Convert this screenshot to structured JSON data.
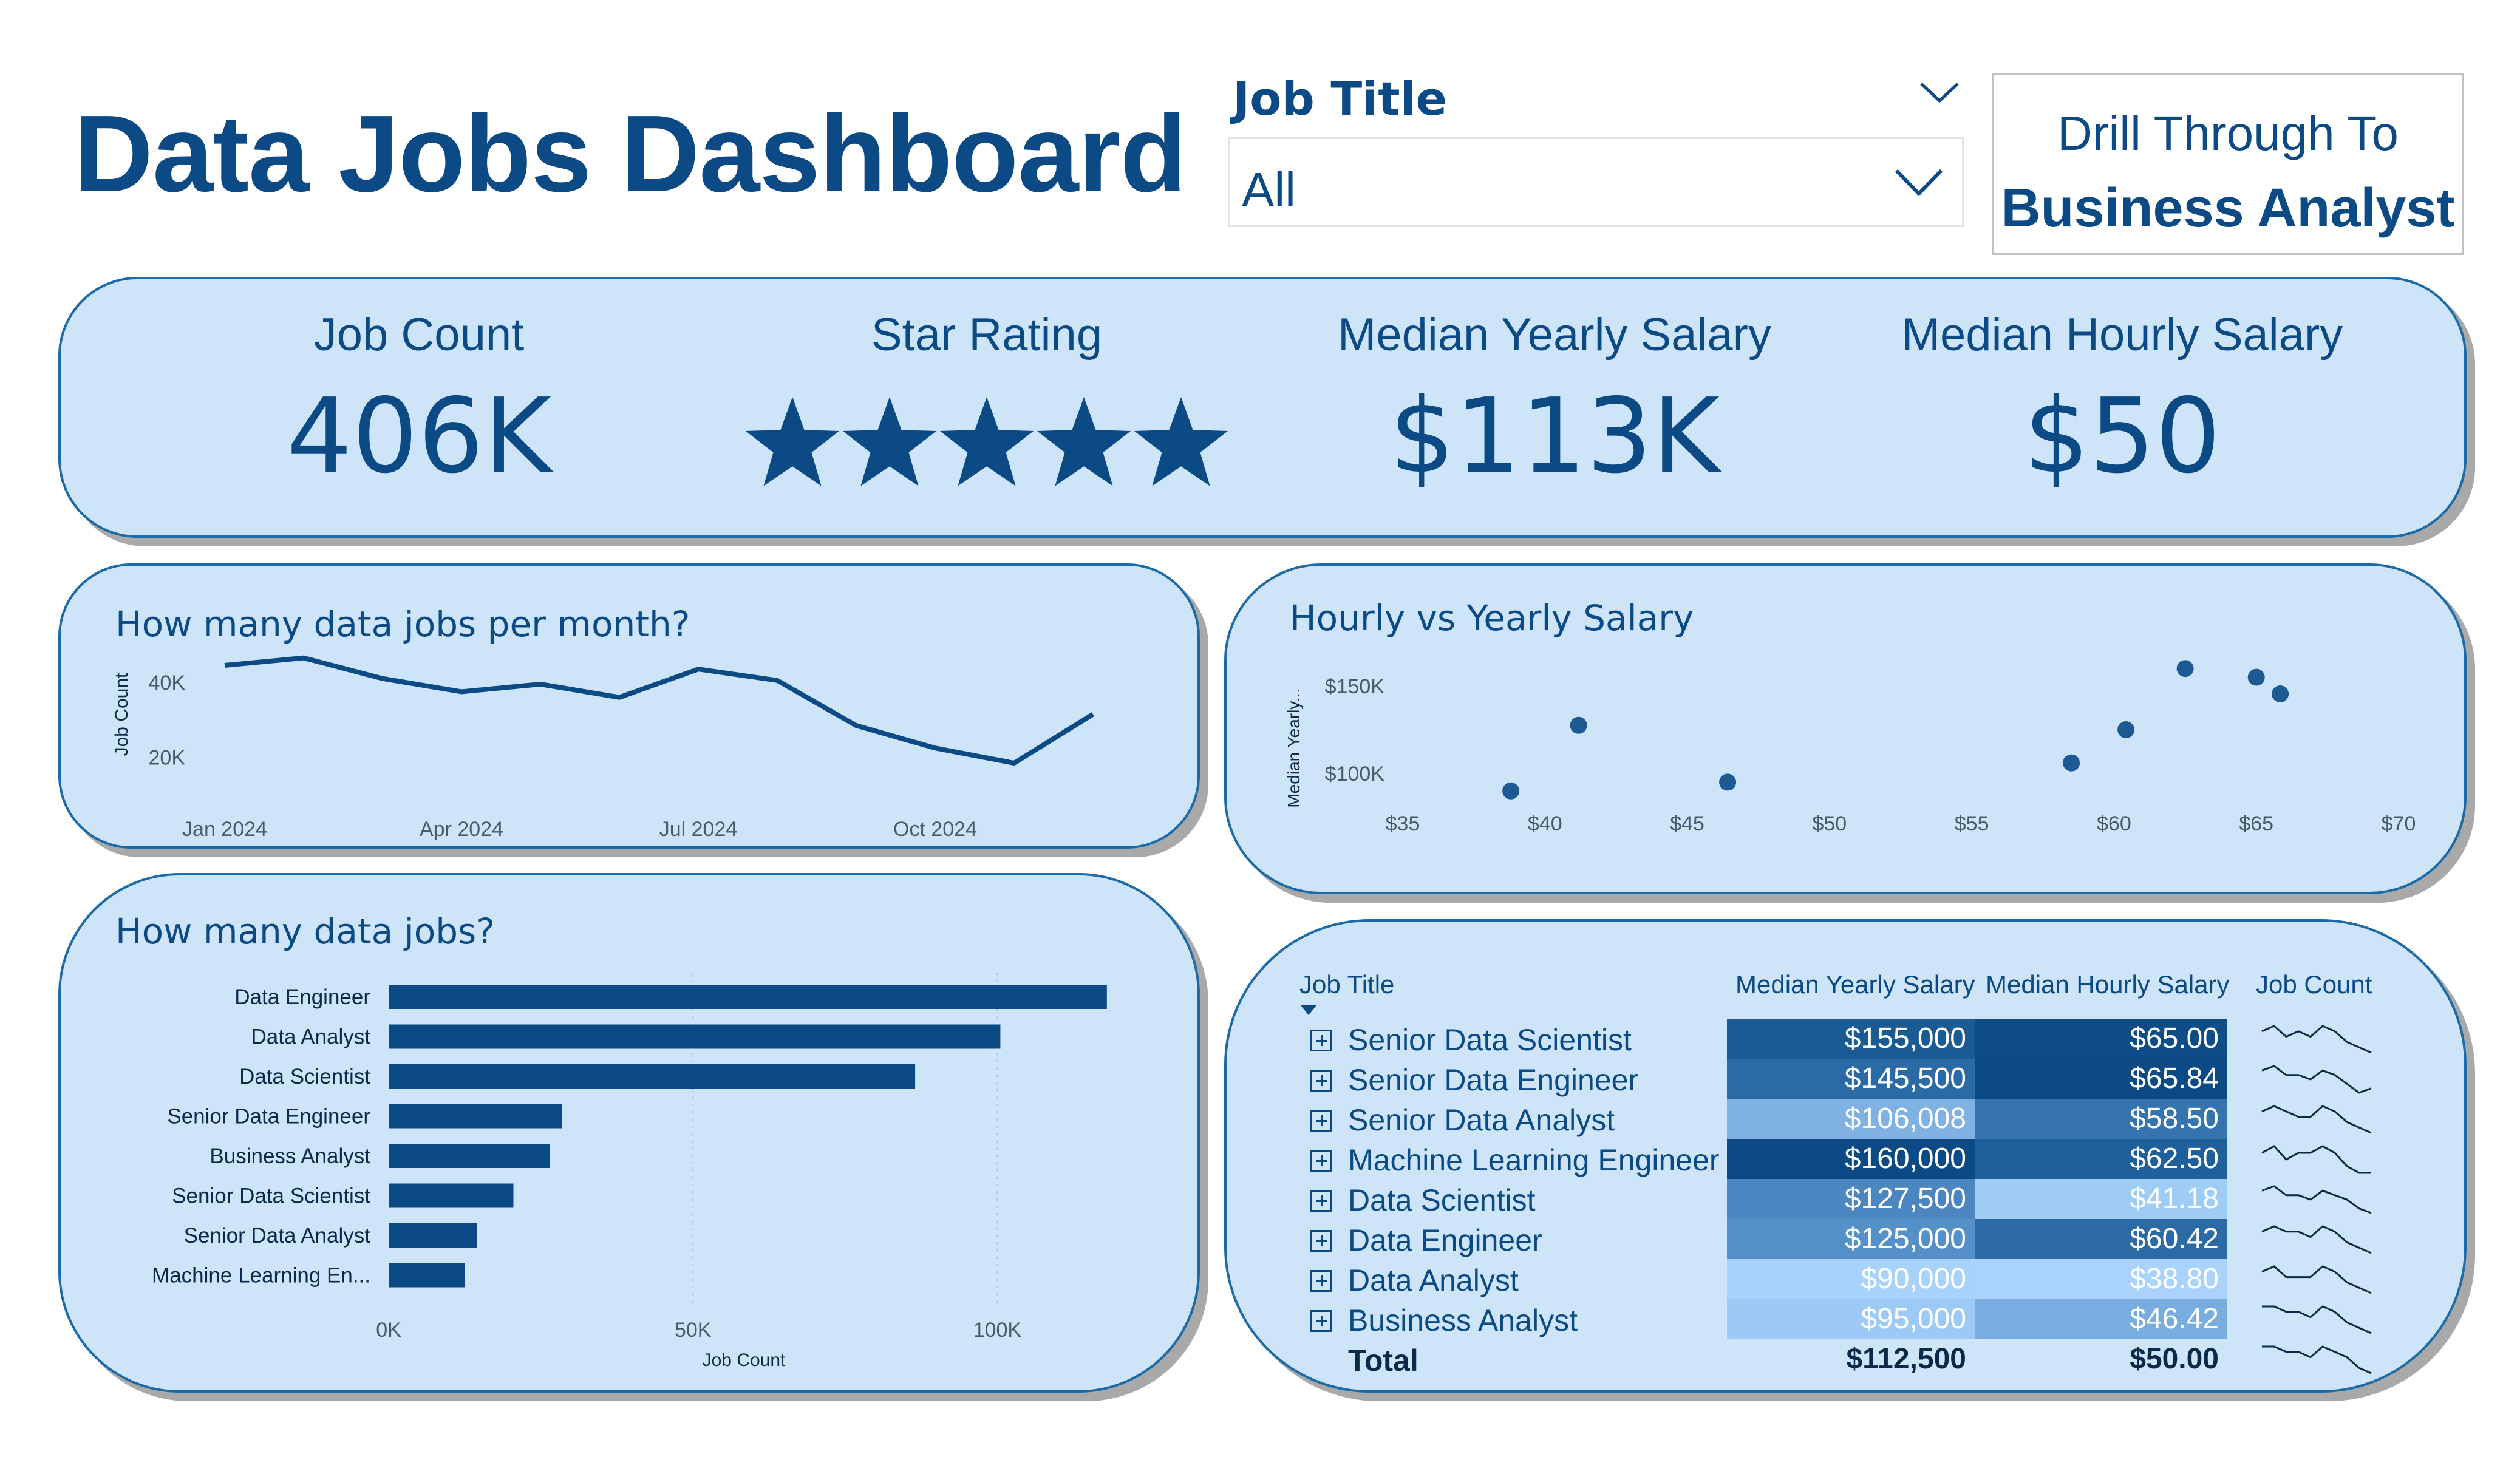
{
  "title": "Data Jobs Dashboard",
  "slicer": {
    "label": "Job Title",
    "value": "All"
  },
  "drill": {
    "line1": "Drill Through To",
    "line2": "Business Analyst"
  },
  "kpis": {
    "job_count": {
      "label": "Job Count",
      "value": "406K"
    },
    "star_rating": {
      "label": "Star Rating",
      "stars": 5,
      "max": 5
    },
    "median_yearly": {
      "label": "Median Yearly Salary",
      "value": "$113K"
    },
    "median_hourly": {
      "label": "Median Hourly Salary",
      "value": "$50"
    }
  },
  "colors": {
    "accent": "#0b4a85",
    "card_bg": "#cde4f9",
    "card_border": "#1d6aa8"
  },
  "line_panel": {
    "title": "How many data jobs per month?"
  },
  "scatter_panel": {
    "title": "Hourly vs Yearly Salary"
  },
  "bar_panel": {
    "title": "How many data jobs?"
  },
  "table": {
    "headers": [
      "Job Title",
      "Median Yearly Salary",
      "Median Hourly Salary",
      "Job Count"
    ],
    "rows": [
      {
        "title": "Senior Data Scientist",
        "yearly": "$155,000",
        "hourly": "$65.00",
        "yearly_bg": "#1a5a95",
        "hourly_bg": "#0e4c88",
        "yearly_fg": "#ffffff",
        "hourly_fg": "#ffffff"
      },
      {
        "title": "Senior Data Engineer",
        "yearly": "$145,500",
        "hourly": "$65.84",
        "yearly_bg": "#2a6aa6",
        "hourly_bg": "#0b4a85",
        "yearly_fg": "#ffffff",
        "hourly_fg": "#ffffff"
      },
      {
        "title": "Senior Data Analyst",
        "yearly": "$106,008",
        "hourly": "$58.50",
        "yearly_bg": "#7fb2e3",
        "hourly_bg": "#3674b0",
        "yearly_fg": "#ffffff",
        "hourly_fg": "#ffffff"
      },
      {
        "title": "Machine Learning Engineer",
        "yearly": "$160,000",
        "hourly": "$62.50",
        "yearly_bg": "#0b4a85",
        "hourly_bg": "#1f5f9b",
        "yearly_fg": "#ffffff",
        "hourly_fg": "#ffffff"
      },
      {
        "title": "Data Scientist",
        "yearly": "$127,500",
        "hourly": "$41.18",
        "yearly_bg": "#4c86c0",
        "hourly_bg": "#9fccf5",
        "yearly_fg": "#ffffff",
        "hourly_fg": "#ffffff"
      },
      {
        "title": "Data Engineer",
        "yearly": "$125,000",
        "hourly": "$60.42",
        "yearly_bg": "#5590c9",
        "hourly_bg": "#2c6aa5",
        "yearly_fg": "#ffffff",
        "hourly_fg": "#ffffff"
      },
      {
        "title": "Data Analyst",
        "yearly": "$90,000",
        "hourly": "$38.80",
        "yearly_bg": "#a7d2fb",
        "hourly_bg": "#a9d3fb",
        "yearly_fg": "#ffffff",
        "hourly_fg": "#ffffff"
      },
      {
        "title": "Business Analyst",
        "yearly": "$95,000",
        "hourly": "$46.42",
        "yearly_bg": "#9cc9f6",
        "hourly_bg": "#79acdf",
        "yearly_fg": "#ffffff",
        "hourly_fg": "#ffffff"
      }
    ],
    "total": {
      "label": "Total",
      "yearly": "$112,500",
      "hourly": "$50.00"
    }
  },
  "chart_data": [
    {
      "type": "line",
      "title": "How many data jobs per month?",
      "ylabel": "Job Count",
      "x": [
        "Jan 2024",
        "Feb 2024",
        "Mar 2024",
        "Apr 2024",
        "May 2024",
        "Jun 2024",
        "Jul 2024",
        "Aug 2024",
        "Sep 2024",
        "Oct 2024",
        "Nov 2024",
        "Dec 2024"
      ],
      "x_ticks": [
        "Jan 2024",
        "Apr 2024",
        "Jul 2024",
        "Oct 2024"
      ],
      "y_ticks": [
        "20K",
        "40K"
      ],
      "values": [
        44500,
        46500,
        41000,
        37500,
        39500,
        36000,
        43500,
        40500,
        28500,
        22500,
        18500,
        31500
      ],
      "ylim": [
        8000,
        50000
      ]
    },
    {
      "type": "scatter",
      "title": "Hourly vs Yearly Salary",
      "xlabel": "",
      "ylabel": "Median Yearly...",
      "x_ticks": [
        "$35",
        "$40",
        "$45",
        "$50",
        "$55",
        "$60",
        "$65",
        "$70"
      ],
      "y_ticks": [
        "$100K",
        "$150K"
      ],
      "xlim": [
        35,
        70
      ],
      "ylim": [
        80000,
        160000
      ],
      "points": [
        {
          "x": 38.8,
          "y": 90000
        },
        {
          "x": 41.18,
          "y": 127500
        },
        {
          "x": 46.42,
          "y": 95000
        },
        {
          "x": 58.5,
          "y": 106008
        },
        {
          "x": 60.42,
          "y": 125000
        },
        {
          "x": 62.5,
          "y": 160000
        },
        {
          "x": 65.0,
          "y": 155000
        },
        {
          "x": 65.84,
          "y": 145500
        }
      ]
    },
    {
      "type": "bar",
      "title": "How many data jobs?",
      "xlabel": "Job Count",
      "orientation": "horizontal",
      "categories": [
        "Data Engineer",
        "Data Analyst",
        "Data Scientist",
        "Senior Data Engineer",
        "Business Analyst",
        "Senior Data Scientist",
        "Senior Data Analyst",
        "Machine Learning En..."
      ],
      "values": [
        118000,
        100500,
        86500,
        28500,
        26500,
        20500,
        14500,
        12500
      ],
      "x_ticks": [
        "0K",
        "50K",
        "100K"
      ],
      "xlim": [
        0,
        125000
      ]
    },
    {
      "type": "line",
      "title": "Job Count",
      "series": [
        {
          "values": [
            5,
            6,
            4,
            5,
            4,
            6,
            5,
            3,
            2,
            1
          ]
        },
        {
          "values": [
            6,
            7,
            5,
            5,
            4,
            6,
            5,
            3,
            1,
            2
          ]
        },
        {
          "values": [
            5,
            6,
            5,
            4,
            4,
            6,
            5,
            3,
            2,
            1
          ]
        },
        {
          "values": [
            5,
            6,
            4,
            5,
            5,
            6,
            5,
            3,
            2,
            2
          ]
        },
        {
          "values": [
            6,
            7,
            5,
            5,
            4,
            6,
            5,
            4,
            2,
            1
          ]
        },
        {
          "values": [
            5,
            6,
            5,
            5,
            4,
            6,
            5,
            3,
            2,
            1
          ]
        },
        {
          "values": [
            5,
            6,
            4,
            4,
            4,
            6,
            5,
            3,
            2,
            1
          ]
        },
        {
          "values": [
            6,
            6,
            5,
            5,
            4,
            6,
            5,
            3,
            2,
            1
          ]
        },
        {
          "values": [
            6,
            6,
            5,
            5,
            4,
            6,
            5,
            4,
            2,
            1
          ]
        }
      ]
    }
  ]
}
